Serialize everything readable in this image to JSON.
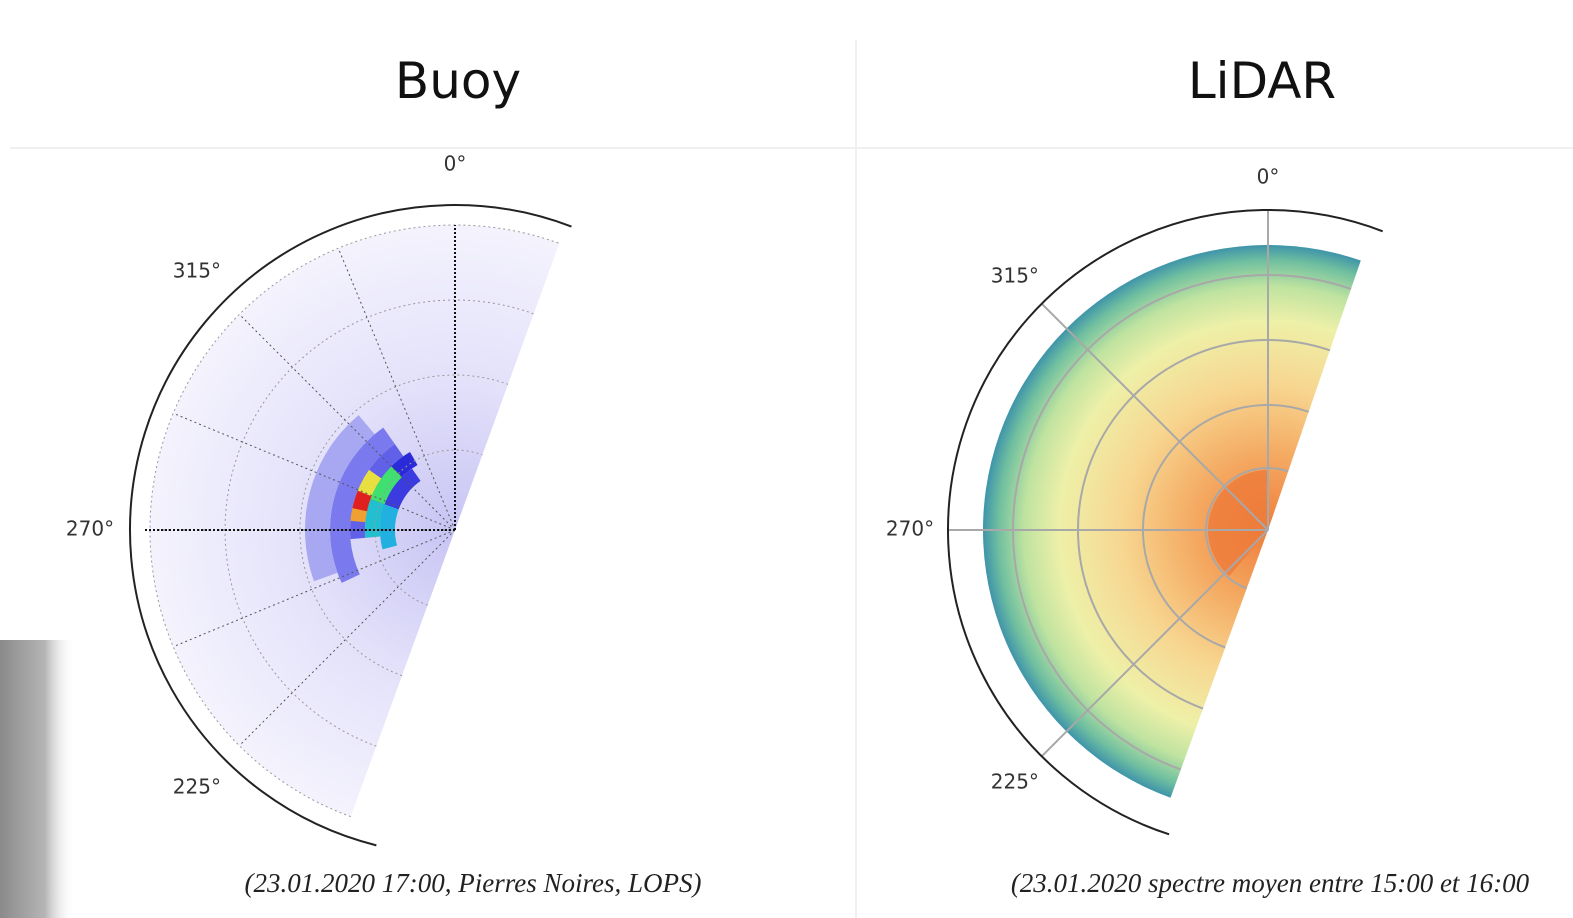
{
  "panels": [
    {
      "title": "Buoy",
      "angle_labels": [
        "0°",
        "315°",
        "270°",
        "225°"
      ],
      "caption": "(23.01.2020 17:00, Pierres Noires, LOPS)"
    },
    {
      "title": "LiDAR",
      "angle_labels": [
        "0°",
        "315°",
        "270°",
        "225°"
      ],
      "caption": "(23.01.2020 spectre moyen entre 15:00 et 16:00"
    }
  ]
}
